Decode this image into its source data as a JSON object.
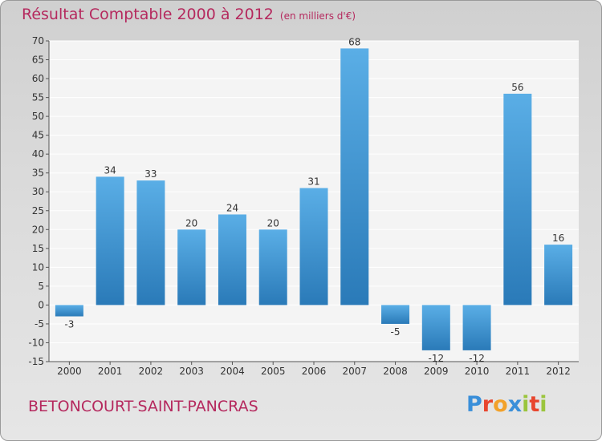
{
  "title": "Résultat Comptable 2000 à 2012",
  "unit": "(en milliers d'€)",
  "city": "BETONCOURT-SAINT-PANCRAS",
  "logo": {
    "letters": [
      "P",
      "r",
      "o",
      "x",
      "i",
      "t",
      "i"
    ],
    "colors": [
      "#3a8fd9",
      "#e8462e",
      "#f2a12a",
      "#3a8fd9",
      "#9bc53d",
      "#e8462e",
      "#9bc53d"
    ]
  },
  "colors": {
    "title": "#b5295e",
    "bar_light": "#5aaee6",
    "bar_dark": "#2a7ab8",
    "gridline": "#ffffff",
    "plot_bg": "#f4f4f4"
  },
  "chart_data": {
    "type": "bar",
    "title": "Résultat Comptable 2000 à 2012",
    "ylabel": "en milliers d'€",
    "categories": [
      "2000",
      "2001",
      "2002",
      "2003",
      "2004",
      "2005",
      "2006",
      "2007",
      "2008",
      "2009",
      "2010",
      "2011",
      "2012"
    ],
    "values": [
      -3,
      34,
      33,
      20,
      24,
      20,
      31,
      68,
      -5,
      -12,
      -12,
      56,
      16
    ],
    "labels": [
      "-3",
      "34",
      "33",
      "20",
      "24",
      "20",
      "31",
      "68",
      "-5",
      "-12",
      "-12",
      "56",
      "16"
    ],
    "ylim": [
      -15,
      70
    ],
    "yticks": [
      -15,
      -10,
      -5,
      0,
      5,
      10,
      15,
      20,
      25,
      30,
      35,
      40,
      45,
      50,
      55,
      60,
      65,
      70
    ],
    "grid": true
  }
}
